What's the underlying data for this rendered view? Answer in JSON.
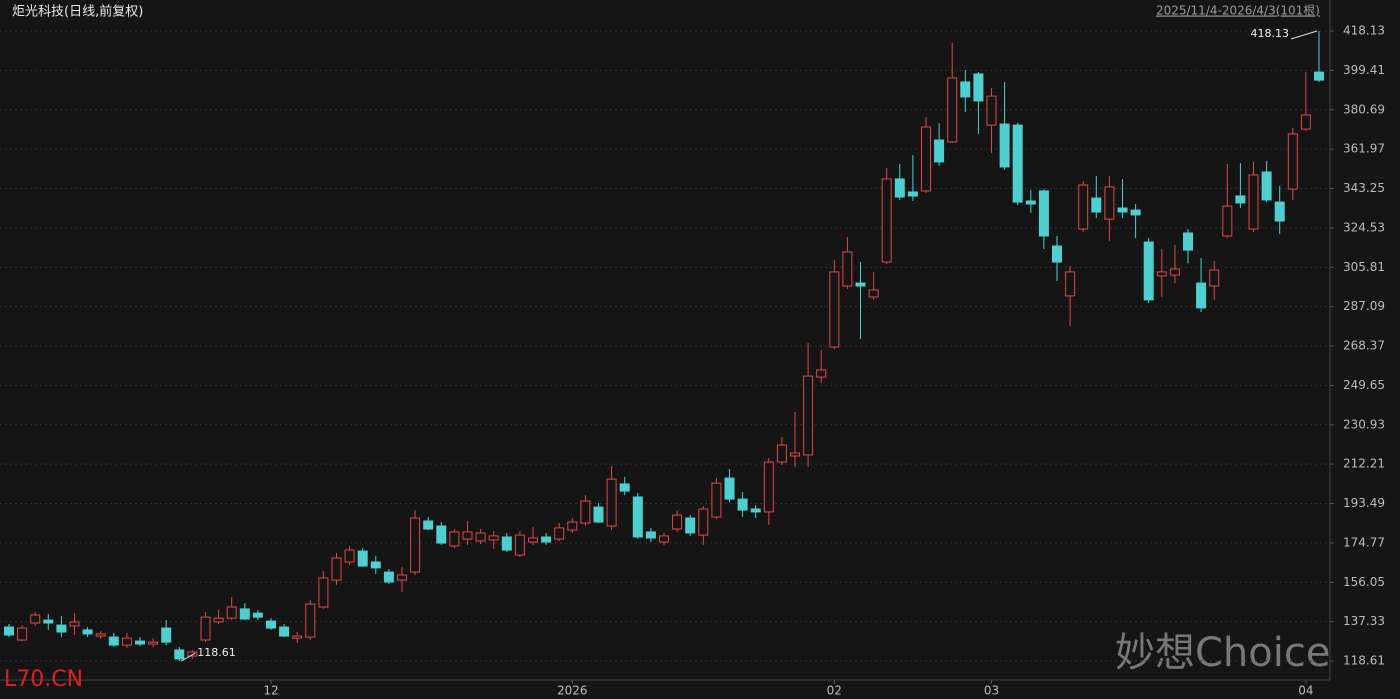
{
  "chart_data": {
    "type": "candlestick",
    "title": "炬光科技(日线,前复权)",
    "subtitle": "2025/11/4-2026/4/3(101根)",
    "watermark": "妙想Choice",
    "source": "L70.CN",
    "up_color": "#e04848",
    "down_color": "#4fcfcf",
    "grid": true,
    "ylim": [
      109.6,
      432.87
    ],
    "yticks": [
      118.61,
      137.33,
      156.05,
      174.77,
      193.49,
      212.21,
      230.93,
      249.65,
      268.37,
      287.09,
      305.81,
      324.53,
      343.25,
      361.97,
      380.69,
      399.41,
      418.13
    ],
    "annotations": [
      418.13,
      118.61
    ],
    "categories": [
      null,
      null,
      null,
      null,
      null,
      null,
      null,
      null,
      null,
      null,
      null,
      null,
      null,
      null,
      null,
      null,
      null,
      null,
      null,
      null,
      "12",
      null,
      null,
      null,
      null,
      null,
      null,
      null,
      null,
      null,
      null,
      null,
      null,
      null,
      null,
      null,
      null,
      null,
      null,
      null,
      null,
      null,
      null,
      "2026",
      null,
      null,
      null,
      null,
      null,
      null,
      null,
      null,
      null,
      null,
      null,
      null,
      null,
      null,
      null,
      null,
      null,
      null,
      null,
      "02",
      null,
      null,
      null,
      null,
      null,
      null,
      null,
      null,
      null,
      null,
      null,
      "03",
      null,
      null,
      null,
      null,
      null,
      null,
      null,
      null,
      null,
      null,
      null,
      null,
      null,
      null,
      null,
      null,
      null,
      null,
      null,
      null,
      null,
      null,
      null,
      "04",
      null
    ],
    "open": [
      134.8,
      128.6,
      136.7,
      138.1,
      135.7,
      135.3,
      133.4,
      130.5,
      130.0,
      126.2,
      128.1,
      126.7,
      134.3,
      123.9,
      121.0,
      128.6,
      137.2,
      139.0,
      143.4,
      141.4,
      137.6,
      134.8,
      129.5,
      130.0,
      144.3,
      157.1,
      165.7,
      170.9,
      165.7,
      160.9,
      157.1,
      160.9,
      185.2,
      182.8,
      173.3,
      176.6,
      175.7,
      176.2,
      177.6,
      169.0,
      175.2,
      177.6,
      176.6,
      180.9,
      184.2,
      191.8,
      182.8,
      202.8,
      196.6,
      180.0,
      175.2,
      181.4,
      186.6,
      178.5,
      187.1,
      205.6,
      195.6,
      190.9,
      189.5,
      213.2,
      216.1,
      216.6,
      253.6,
      267.9,
      296.9,
      298.3,
      291.7,
      308.3,
      347.8,
      341.6,
      342.1,
      366.3,
      365.4,
      393.9,
      397.7,
      373.4,
      373.9,
      373.4,
      337.3,
      342.1,
      315.9,
      292.2,
      324.0,
      338.7,
      328.7,
      334.0,
      333.0,
      317.8,
      301.7,
      302.1,
      322.1,
      298.3,
      296.9,
      320.7,
      339.7,
      324.0,
      351.1,
      336.8,
      343.0,
      371.5,
      398.6
    ],
    "high": [
      136.2,
      135.7,
      141.9,
      141.0,
      140.0,
      141.4,
      134.8,
      132.9,
      132.0,
      132.0,
      130.0,
      129.5,
      138.1,
      125.3,
      123.9,
      141.9,
      142.9,
      149.0,
      146.2,
      142.9,
      139.0,
      136.2,
      132.4,
      147.6,
      161.4,
      170.0,
      173.3,
      172.3,
      168.5,
      162.4,
      163.3,
      190.4,
      187.1,
      184.7,
      181.4,
      185.2,
      181.4,
      180.4,
      179.5,
      180.4,
      182.3,
      179.5,
      184.2,
      186.6,
      197.5,
      193.7,
      211.3,
      206.1,
      198.5,
      181.9,
      179.5,
      190.4,
      188.0,
      192.3,
      205.6,
      209.9,
      198.9,
      192.8,
      215.1,
      225.1,
      237.0,
      269.8,
      266.5,
      309.3,
      320.2,
      308.3,
      303.6,
      353.0,
      354.9,
      359.2,
      377.2,
      374.4,
      412.5,
      399.6,
      398.6,
      391.0,
      393.9,
      374.4,
      342.5,
      343.0,
      320.7,
      306.4,
      346.8,
      349.2,
      349.2,
      347.8,
      335.9,
      319.7,
      314.5,
      316.4,
      324.0,
      310.2,
      308.8,
      354.9,
      355.4,
      355.9,
      356.3,
      344.5,
      372.0,
      398.6,
      418.13
    ],
    "low": [
      130.0,
      128.1,
      135.3,
      133.4,
      130.0,
      131.0,
      130.0,
      129.1,
      125.3,
      124.8,
      125.7,
      125.3,
      126.2,
      118.61,
      119.6,
      127.6,
      136.2,
      138.1,
      138.1,
      138.1,
      133.4,
      130.0,
      127.2,
      128.6,
      143.4,
      154.8,
      164.3,
      163.3,
      160.0,
      155.2,
      151.4,
      159.5,
      180.9,
      173.8,
      172.3,
      173.8,
      174.2,
      171.9,
      170.4,
      168.1,
      173.8,
      173.8,
      175.7,
      179.5,
      182.8,
      184.2,
      180.9,
      197.5,
      176.6,
      175.2,
      173.8,
      180.0,
      178.1,
      173.8,
      186.1,
      194.2,
      187.1,
      186.6,
      183.3,
      211.8,
      210.8,
      210.8,
      250.8,
      267.0,
      295.5,
      271.7,
      290.3,
      307.4,
      337.8,
      337.3,
      341.1,
      354.0,
      364.9,
      379.6,
      369.2,
      360.1,
      352.1,
      335.4,
      331.6,
      314.5,
      299.3,
      277.9,
      322.6,
      329.2,
      318.3,
      329.2,
      319.7,
      288.8,
      291.7,
      298.3,
      307.8,
      284.5,
      290.3,
      319.7,
      334.0,
      322.6,
      336.8,
      321.6,
      337.8,
      370.6,
      393.9
    ],
    "close": [
      131.0,
      134.3,
      140.5,
      136.7,
      132.4,
      137.2,
      131.5,
      131.5,
      126.2,
      129.5,
      126.7,
      127.6,
      127.6,
      119.6,
      122.9,
      139.5,
      139.0,
      144.3,
      138.6,
      139.5,
      134.3,
      130.5,
      130.5,
      145.7,
      158.1,
      167.6,
      171.4,
      163.8,
      162.9,
      156.2,
      159.5,
      186.6,
      181.4,
      174.7,
      180.0,
      180.0,
      179.5,
      178.1,
      171.4,
      178.5,
      177.1,
      175.2,
      181.9,
      184.7,
      194.7,
      184.7,
      205.1,
      199.4,
      177.6,
      177.1,
      178.1,
      188.0,
      179.5,
      190.9,
      203.2,
      195.6,
      190.4,
      189.5,
      213.2,
      221.3,
      217.5,
      254.1,
      257.0,
      303.6,
      313.1,
      296.9,
      295.0,
      347.8,
      339.2,
      339.7,
      372.5,
      355.9,
      395.8,
      386.8,
      384.9,
      387.2,
      353.5,
      336.8,
      335.9,
      320.7,
      308.3,
      303.6,
      344.9,
      332.1,
      344.0,
      332.1,
      330.7,
      290.3,
      303.6,
      305.0,
      314.0,
      286.5,
      304.5,
      334.9,
      336.4,
      349.7,
      337.8,
      327.8,
      369.2,
      378.2,
      394.8
    ]
  }
}
